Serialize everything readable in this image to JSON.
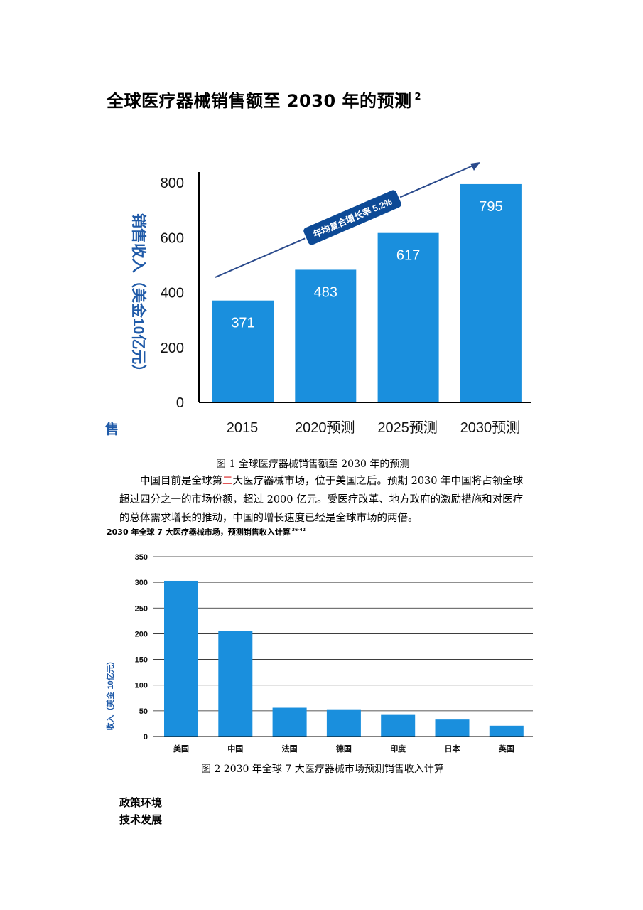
{
  "title1": {
    "text": "全球医疗器械销售额至 2030 年的预测",
    "sup": "2"
  },
  "chart_data": [
    {
      "type": "bar",
      "categories": [
        "2015",
        "2020预测",
        "2025预测",
        "2030预测"
      ],
      "values": [
        371,
        483,
        617,
        795
      ],
      "data_labels": [
        "371",
        "483",
        "617",
        "795"
      ],
      "ylabel": "销售收入（美金10亿元）",
      "ylabel_fragment": "售",
      "yticks": [
        "0",
        "200",
        "400",
        "600",
        "800"
      ],
      "ylim": [
        0,
        800
      ],
      "annotation": "年均复合增长率 5.2%",
      "bar_color": "#1a8fdd",
      "grid": false
    },
    {
      "type": "bar",
      "title": "2030 年全球 7 大医疗器械市场，预测销售收入计算",
      "title_sup": "36-42",
      "categories": [
        "美国",
        "中国",
        "法国",
        "德国",
        "印度",
        "日本",
        "英国"
      ],
      "values": [
        303,
        206,
        56,
        53,
        42,
        33,
        21
      ],
      "ylabel": "收入（美金 10亿元）",
      "yticks": [
        "0",
        "50",
        "100",
        "150",
        "200",
        "250",
        "300",
        "350"
      ],
      "ylim": [
        0,
        350
      ],
      "bar_color": "#1a8fdd",
      "grid": true
    }
  ],
  "caption1": "图 1  全球医疗器械销售额至 2030 年的预测",
  "paragraph": {
    "line1_a": "中国目前是全球第",
    "line1_hl": "二",
    "line1_b": "大医疗器械市场，位于美国之后。预期 2030 年中国将占领全球",
    "line2": "超过四分之一的市场份额，超过 2000 亿元。受医疗改革、地方政府的激励措施和对医疗",
    "line3": "的总体需求增长的推动，中国的增长速度已经是全球市场的两倍。"
  },
  "caption2": "图 2  2030 年全球 7 大医疗器械市场预测销售收入计算",
  "headings": [
    "政策环境",
    "技术发展"
  ],
  "colors": {
    "bar": "#1a8fdd",
    "annotation_bg": "#0d4a96",
    "arrow": "#2a4a8c",
    "axis_title": "#1f5aa8"
  }
}
